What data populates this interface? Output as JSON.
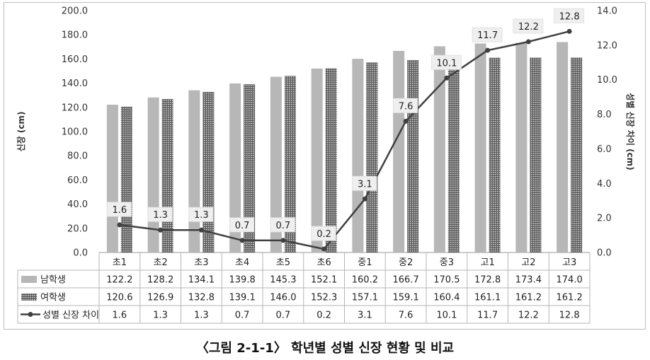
{
  "caption": "〈그림 2-1-1〉 학년별 성별 신장 현황 및 비교",
  "chart_data": {
    "type": "bar",
    "categories": [
      "초1",
      "초2",
      "초3",
      "초4",
      "초5",
      "초6",
      "중1",
      "중2",
      "중3",
      "고1",
      "고2",
      "고3"
    ],
    "series": [
      {
        "name": "남학생",
        "kind": "bar",
        "axis": "left",
        "color": "#b7b7b7",
        "values": [
          122.2,
          128.2,
          134.1,
          139.8,
          145.3,
          152.1,
          160.2,
          166.7,
          170.5,
          172.8,
          173.4,
          174.0
        ]
      },
      {
        "name": "여학생",
        "kind": "bar",
        "axis": "left",
        "color": "#8c8c8c",
        "pattern": "dotted",
        "values": [
          120.6,
          126.9,
          132.8,
          139.1,
          146.0,
          152.3,
          157.1,
          159.1,
          160.4,
          161.1,
          161.2,
          161.2
        ]
      },
      {
        "name": "성별 신장 차이",
        "kind": "line",
        "axis": "right",
        "color": "#404040",
        "values": [
          1.6,
          1.3,
          1.3,
          0.7,
          0.7,
          0.2,
          3.1,
          7.6,
          10.1,
          11.7,
          12.2,
          12.8
        ]
      }
    ],
    "ylabel": "신장 (cm)",
    "y2label": "성별 신장 차이 (cm)",
    "ylim": [
      0,
      200
    ],
    "y2lim": [
      0,
      14
    ],
    "yticks": [
      "0.0",
      "20.0",
      "40.0",
      "60.0",
      "80.0",
      "100.0",
      "120.0",
      "140.0",
      "160.0",
      "180.0",
      "200.0"
    ],
    "y2ticks": [
      "0.0",
      "2.0",
      "4.0",
      "6.0",
      "8.0",
      "10.0",
      "12.0",
      "14.0"
    ],
    "line_labels": [
      "1.6",
      "1.3",
      "1.3",
      "0.7",
      "0.7",
      "0.2",
      "3.1",
      "7.6",
      "10.1",
      "11.7",
      "12.2",
      "12.8"
    ],
    "table": {
      "rows": [
        {
          "label": "남학생",
          "cells": [
            "122.2",
            "128.2",
            "134.1",
            "139.8",
            "145.3",
            "152.1",
            "160.2",
            "166.7",
            "170.5",
            "172.8",
            "173.4",
            "174.0"
          ]
        },
        {
          "label": "여학생",
          "cells": [
            "120.6",
            "126.9",
            "132.8",
            "139.1",
            "146.0",
            "152.3",
            "157.1",
            "159.1",
            "160.4",
            "161.1",
            "161.2",
            "161.2"
          ]
        },
        {
          "label": "성별 신장 차이",
          "cells": [
            "1.6",
            "1.3",
            "1.3",
            "0.7",
            "0.7",
            "0.2",
            "3.1",
            "7.6",
            "10.1",
            "11.7",
            "12.2",
            "12.8"
          ]
        }
      ]
    },
    "grid": false
  }
}
